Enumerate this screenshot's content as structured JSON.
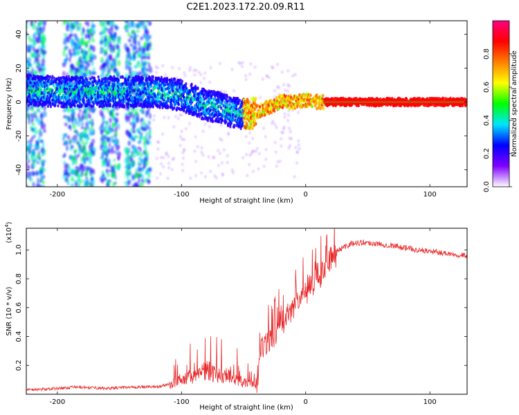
{
  "title": "C2E1.2023.172.20.09.R11",
  "chart_data": [
    {
      "type": "heatmap",
      "xlabel": "Height of straight line (km)",
      "ylabel": "Frequency (Hz)",
      "xlim": [
        -225,
        130
      ],
      "ylim": [
        -50,
        48
      ],
      "x_ticks": [
        -200,
        -100,
        0,
        100
      ],
      "x_tick_labels": [
        "-200",
        "-100",
        "0",
        "100"
      ],
      "y_ticks": [
        -40,
        -20,
        0,
        20,
        40
      ],
      "y_tick_labels": [
        "-40",
        "-20",
        "0",
        "20",
        "40"
      ],
      "colorbar": {
        "label": "Normalized spectral amplitude",
        "range": [
          0,
          1
        ],
        "ticks": [
          0.0,
          0.2,
          0.4,
          0.6,
          0.8
        ],
        "tick_labels": [
          "0.0",
          "0.2",
          "0.4",
          "0.6",
          "0.8"
        ],
        "colors": [
          "#ffffff",
          "#8000ff",
          "#0000ff",
          "#00e5ff",
          "#00ff00",
          "#ffff00",
          "#ff8000",
          "#ff0000",
          "#ff0080"
        ]
      },
      "ridge": [
        {
          "x": -220,
          "y": 7
        },
        {
          "x": -200,
          "y": 6
        },
        {
          "x": -180,
          "y": 6
        },
        {
          "x": -160,
          "y": 6
        },
        {
          "x": -140,
          "y": 6
        },
        {
          "x": -120,
          "y": 6
        },
        {
          "x": -100,
          "y": 4
        },
        {
          "x": -90,
          "y": 1
        },
        {
          "x": -80,
          "y": -2
        },
        {
          "x": -70,
          "y": -3
        },
        {
          "x": -60,
          "y": -6
        },
        {
          "x": -50,
          "y": -7
        },
        {
          "x": -45,
          "y": -7
        },
        {
          "x": -40,
          "y": -6
        },
        {
          "x": -30,
          "y": -3
        },
        {
          "x": -20,
          "y": 0
        },
        {
          "x": -10,
          "y": 0
        },
        {
          "x": 0,
          "y": 1
        },
        {
          "x": 10,
          "y": 0
        },
        {
          "x": 20,
          "y": 0
        },
        {
          "x": 50,
          "y": 0
        },
        {
          "x": 100,
          "y": 0
        },
        {
          "x": 130,
          "y": 0
        }
      ],
      "noise_bands_x": [
        [
          -225,
          -210
        ],
        [
          -195,
          -170
        ],
        [
          -165,
          -150
        ],
        [
          -145,
          -125
        ]
      ]
    },
    {
      "type": "line",
      "xlabel": "Height of straight line (km)",
      "ylabel": "SNR (10 * v/v)",
      "y_scale_label": "(x10",
      "y_scale_exponent": "4",
      "xlim": [
        -225,
        130
      ],
      "ylim": [
        0,
        1.15
      ],
      "x_ticks": [
        -200,
        -100,
        0,
        100
      ],
      "x_tick_labels": [
        "-200",
        "-100",
        "0",
        "100"
      ],
      "y_ticks": [
        0.2,
        0.4,
        0.6,
        0.8,
        1.0
      ],
      "y_tick_labels": [
        "0.2",
        "0.4",
        "0.6",
        "0.8",
        "1.0"
      ],
      "color": "#e8282a",
      "envelope": [
        {
          "x": -225,
          "y": 0.03
        },
        {
          "x": -200,
          "y": 0.04
        },
        {
          "x": -185,
          "y": 0.05
        },
        {
          "x": -160,
          "y": 0.04
        },
        {
          "x": -140,
          "y": 0.05
        },
        {
          "x": -120,
          "y": 0.05
        },
        {
          "x": -110,
          "y": 0.07
        },
        {
          "x": -100,
          "y": 0.1
        },
        {
          "x": -90,
          "y": 0.13
        },
        {
          "x": -80,
          "y": 0.16
        },
        {
          "x": -70,
          "y": 0.14
        },
        {
          "x": -60,
          "y": 0.12
        },
        {
          "x": -50,
          "y": 0.08
        },
        {
          "x": -40,
          "y": 0.06
        },
        {
          "x": -35,
          "y": 0.35
        },
        {
          "x": -30,
          "y": 0.38
        },
        {
          "x": -20,
          "y": 0.5
        },
        {
          "x": -10,
          "y": 0.62
        },
        {
          "x": 0,
          "y": 0.72
        },
        {
          "x": 10,
          "y": 0.82
        },
        {
          "x": 20,
          "y": 0.95
        },
        {
          "x": 30,
          "y": 1.02
        },
        {
          "x": 40,
          "y": 1.05
        },
        {
          "x": 50,
          "y": 1.05
        },
        {
          "x": 70,
          "y": 1.03
        },
        {
          "x": 90,
          "y": 1.0
        },
        {
          "x": 110,
          "y": 0.98
        },
        {
          "x": 130,
          "y": 0.96
        }
      ]
    }
  ]
}
